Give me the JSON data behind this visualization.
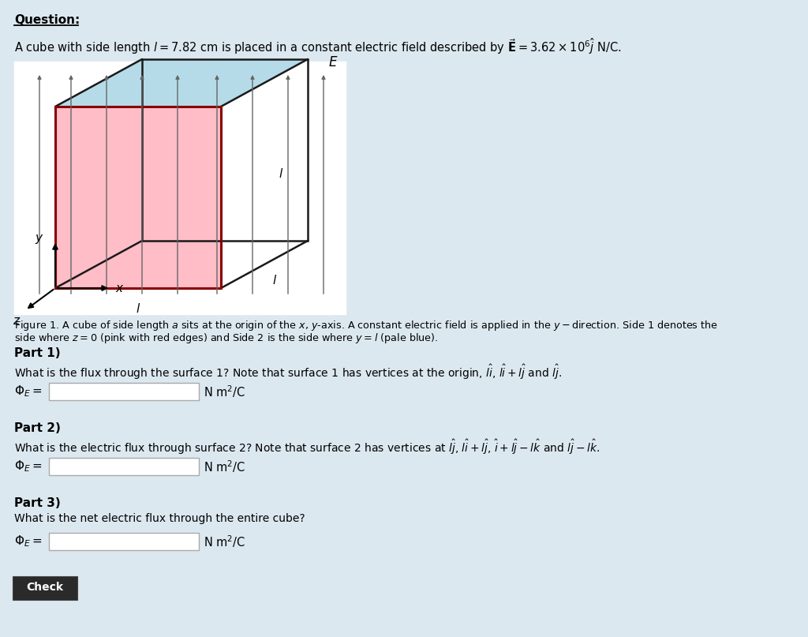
{
  "bg_color": "#dce8f0",
  "pink_color": "#ffb6c1",
  "blue_color": "#add8e6",
  "cube_edge_color": "#1a1a1a",
  "red_edge_color": "#880000",
  "arrow_color": "#666666",
  "figure_caption_line1": "Figure 1. A cube of side length $a$ sits at the origin of the $x$, $y$-axis. A constant electric field is applied in the $y-$direction. Side 1 denotes the",
  "figure_caption_line2": "side where $z = 0$ (pink with red edges) and Side 2 is the side where $y = l$ (pale blue).",
  "part1_title": "Part 1)",
  "part1_text": "What is the flux through the surface 1? Note that surface 1 has vertices at the origin, $l\\hat{i}$, $l\\hat{i} + l\\hat{j}$ and $l\\hat{j}$.",
  "part2_title": "Part 2)",
  "part2_text": "What is the electric flux through surface 2? Note that surface 2 has vertices at $l\\hat{j}$, $l\\hat{i} + l\\hat{j}$, $\\hat{i} + l\\hat{j} - l\\hat{k}$ and $l\\hat{j} - l\\hat{k}$.",
  "part3_title": "Part 3)",
  "part3_text": "What is the net electric flux through the entire cube?",
  "flux_label": "$\\Phi_E =$",
  "unit_label": "N m$^2$/C",
  "check_label": "Check"
}
